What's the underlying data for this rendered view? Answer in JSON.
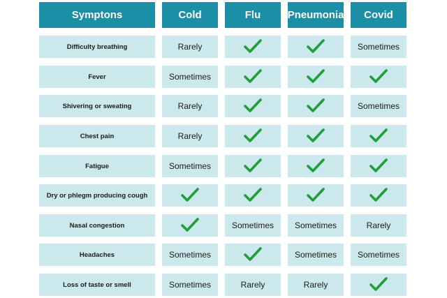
{
  "table": {
    "headers": [
      "Symptons",
      "Cold",
      "Flu",
      "Pneumonia",
      "Covid"
    ],
    "rows": [
      {
        "symptom": "Difficulty breathing",
        "values": [
          "Rarely",
          "check",
          "check",
          "Sometimes"
        ]
      },
      {
        "symptom": "Fever",
        "values": [
          "Sometimes",
          "check",
          "check",
          "check"
        ]
      },
      {
        "symptom": "Shivering or sweating",
        "values": [
          "Rarely",
          "check",
          "check",
          "Sometimes"
        ]
      },
      {
        "symptom": "Chest pain",
        "values": [
          "Rarely",
          "check",
          "check",
          "check"
        ]
      },
      {
        "symptom": "Fatigue",
        "values": [
          "Sometimes",
          "check",
          "check",
          "check"
        ]
      },
      {
        "symptom": "Dry or phlegm producing cough",
        "values": [
          "check",
          "check",
          "check",
          "check"
        ]
      },
      {
        "symptom": "Nasal congestion",
        "values": [
          "check",
          "Sometimes",
          "Sometimes",
          "Rarely"
        ]
      },
      {
        "symptom": "Headaches",
        "values": [
          "Sometimes",
          "check",
          "Sometimes",
          "Sometimes"
        ]
      },
      {
        "symptom": "Loss of taste or smell",
        "values": [
          "Sometimes",
          "Rarely",
          "Rarely",
          "check"
        ]
      }
    ]
  },
  "colors": {
    "header_bg": "#1a8fa5",
    "cell_bg": "#cbe9ec",
    "check": "#1f9e3a"
  },
  "icons": {
    "check": "check-icon"
  }
}
